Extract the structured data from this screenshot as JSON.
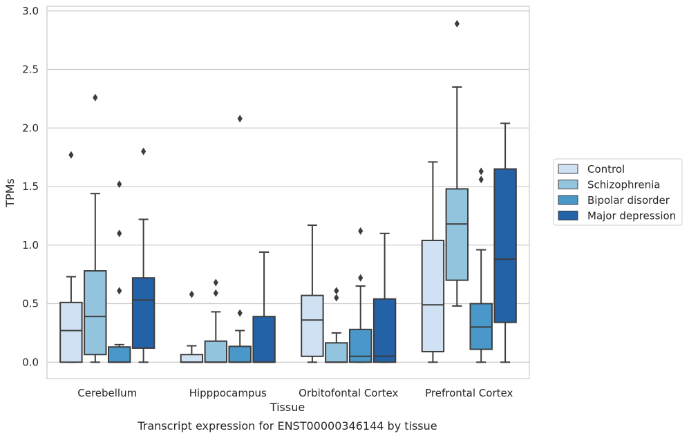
{
  "caption": "Transcript expression for ENST00000346144 by tissue",
  "chart_data": {
    "type": "boxplot",
    "title": "",
    "xlabel": "Tissue",
    "ylabel": "TPMs",
    "ylim": [
      -0.14,
      3.04
    ],
    "yticks": [
      "0.0",
      "0.5",
      "1.0",
      "1.5",
      "2.0",
      "2.5",
      "3.0"
    ],
    "grid": "horizontal",
    "legend_position": "right",
    "categories": [
      "Cerebellum",
      "Hipppocampus",
      "Orbitofontal Cortex",
      "Prefrontal Cortex"
    ],
    "series": [
      {
        "name": "Control",
        "color": "#cfe1f2",
        "boxes": [
          {
            "whislo": 0.0,
            "q1": 0.0,
            "med": 0.27,
            "q3": 0.51,
            "whishi": 0.73,
            "fliers": [
              1.77
            ]
          },
          {
            "whislo": 0.0,
            "q1": 0.0,
            "med": 0.0,
            "q3": 0.065,
            "whishi": 0.14,
            "fliers": [
              0.58
            ]
          },
          {
            "whislo": 0.0,
            "q1": 0.05,
            "med": 0.36,
            "q3": 0.57,
            "whishi": 1.17,
            "fliers": []
          },
          {
            "whislo": 0.0,
            "q1": 0.09,
            "med": 0.49,
            "q3": 1.04,
            "whishi": 1.71,
            "fliers": []
          }
        ]
      },
      {
        "name": "Schizophrenia",
        "color": "#93c4de",
        "boxes": [
          {
            "whislo": 0.0,
            "q1": 0.065,
            "med": 0.39,
            "q3": 0.78,
            "whishi": 1.44,
            "fliers": [
              2.26
            ]
          },
          {
            "whislo": 0.0,
            "q1": 0.0,
            "med": 0.0,
            "q3": 0.18,
            "whishi": 0.43,
            "fliers": [
              0.59,
              0.68
            ]
          },
          {
            "whislo": 0.0,
            "q1": 0.0,
            "med": 0.0,
            "q3": 0.165,
            "whishi": 0.25,
            "fliers": [
              0.55,
              0.61
            ]
          },
          {
            "whislo": 0.48,
            "q1": 0.7,
            "med": 1.18,
            "q3": 1.48,
            "whishi": 2.35,
            "fliers": [
              2.89
            ]
          }
        ]
      },
      {
        "name": "Bipolar disorder",
        "color": "#4a98c9",
        "boxes": [
          {
            "whislo": 0.0,
            "q1": 0.0,
            "med": 0.0,
            "q3": 0.13,
            "whishi": 0.15,
            "fliers": [
              0.61,
              1.1,
              1.52
            ]
          },
          {
            "whislo": 0.0,
            "q1": 0.0,
            "med": 0.0,
            "q3": 0.135,
            "whishi": 0.27,
            "fliers": [
              0.42,
              2.08
            ]
          },
          {
            "whislo": 0.0,
            "q1": 0.0,
            "med": 0.05,
            "q3": 0.28,
            "whishi": 0.65,
            "fliers": [
              0.72,
              1.12
            ]
          },
          {
            "whislo": 0.0,
            "q1": 0.11,
            "med": 0.3,
            "q3": 0.5,
            "whishi": 0.96,
            "fliers": [
              1.56,
              1.63
            ]
          }
        ]
      },
      {
        "name": "Major depression",
        "color": "#2362a6",
        "boxes": [
          {
            "whislo": 0.0,
            "q1": 0.12,
            "med": 0.53,
            "q3": 0.72,
            "whishi": 1.22,
            "fliers": [
              1.8
            ]
          },
          {
            "whislo": 0.0,
            "q1": 0.0,
            "med": 0.0,
            "q3": 0.39,
            "whishi": 0.94,
            "fliers": []
          },
          {
            "whislo": 0.0,
            "q1": 0.0,
            "med": 0.05,
            "q3": 0.54,
            "whishi": 1.1,
            "fliers": []
          },
          {
            "whislo": 0.0,
            "q1": 0.34,
            "med": 0.88,
            "q3": 1.65,
            "whishi": 2.04,
            "fliers": []
          }
        ]
      }
    ]
  }
}
